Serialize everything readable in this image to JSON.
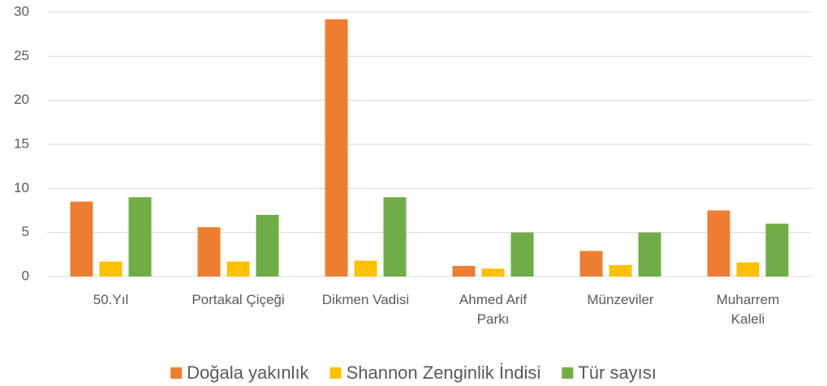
{
  "chart_data": {
    "type": "bar",
    "categories": [
      [
        "50.Yıl"
      ],
      [
        "Portakal Çiçeği"
      ],
      [
        "Dikmen Vadisi"
      ],
      [
        "Ahmed Arif",
        "Parkı"
      ],
      [
        "Münzeviler"
      ],
      [
        "Muharrem",
        "Kaleli"
      ]
    ],
    "series": [
      {
        "name": "Doğala yakınlık",
        "color": "#ed7d31",
        "values": [
          8.5,
          5.6,
          29.2,
          1.2,
          2.9,
          7.5
        ]
      },
      {
        "name": "Shannon Zenginlik İndisi",
        "color": "#ffc000",
        "values": [
          1.7,
          1.7,
          1.8,
          0.9,
          1.3,
          1.6
        ]
      },
      {
        "name": "Tür sayısı",
        "color": "#70ad47",
        "values": [
          9,
          7,
          9,
          5,
          5,
          6
        ]
      }
    ],
    "ylim": [
      0,
      30
    ],
    "yticks": [
      0,
      5,
      10,
      15,
      20,
      25,
      30
    ],
    "grid": true,
    "legend": "bottom"
  }
}
